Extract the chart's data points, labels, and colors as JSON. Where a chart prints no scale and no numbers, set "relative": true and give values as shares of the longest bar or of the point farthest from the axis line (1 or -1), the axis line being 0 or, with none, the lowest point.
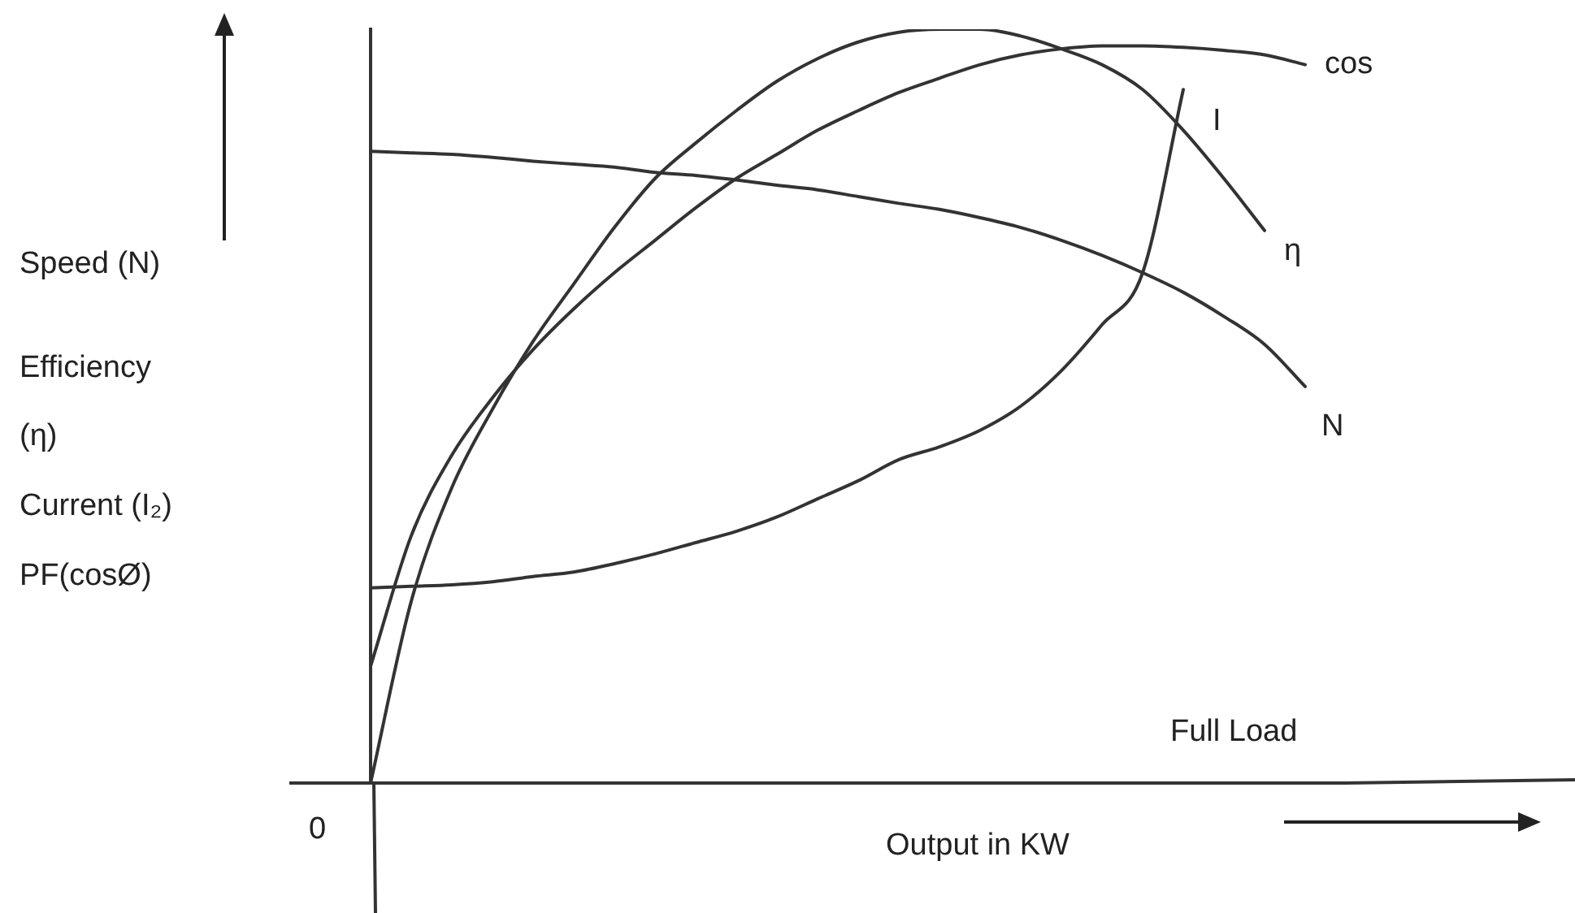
{
  "chart_data": {
    "type": "line",
    "relative": true,
    "xlabel": "Output in KW",
    "annotations": [
      "Speed (N)",
      "Efficiency",
      "(η)",
      "Current (I₂)",
      "PF(cosØ)",
      "0",
      "Full Load"
    ],
    "legend": false,
    "marker": "none",
    "line_style": "solid",
    "tick_labels": false,
    "categories": [
      null,
      null,
      null,
      null,
      null,
      null,
      null,
      null,
      null,
      null,
      null,
      null,
      null,
      null,
      null,
      null,
      null,
      null,
      null,
      null,
      null,
      null,
      null,
      null,
      null
    ],
    "series": [
      {
        "name": "cos",
        "color": "#333333",
        "values": [
          0.155,
          0.328,
          0.435,
          0.511,
          0.575,
          0.629,
          0.677,
          0.72,
          0.763,
          0.802,
          0.834,
          0.866,
          0.892,
          0.916,
          0.935,
          0.953,
          0.966,
          0.974,
          0.978,
          0.978,
          0.976,
          0.972,
          0.966,
          0.953,
          null
        ]
      },
      {
        "name": "I",
        "color": "#333333",
        "values": [
          0.259,
          0.261,
          0.263,
          0.267,
          0.274,
          0.28,
          0.291,
          0.304,
          0.319,
          0.334,
          0.353,
          0.377,
          0.401,
          0.429,
          0.446,
          0.468,
          0.5,
          0.547,
          0.608,
          0.677,
          0.92,
          null,
          null,
          null,
          null
        ]
      },
      {
        "name": "η",
        "color": "#333333",
        "values": [
          0,
          0.241,
          0.392,
          0.496,
          0.586,
          0.662,
          0.737,
          0.802,
          0.849,
          0.892,
          0.931,
          0.961,
          0.983,
          0.996,
          1,
          1,
          0.991,
          0.974,
          0.953,
          0.92,
          0.866,
          0.802,
          0.733,
          null,
          null
        ]
      },
      {
        "name": "N",
        "color": "#333333",
        "values": [
          0.838,
          0.836,
          0.834,
          0.83,
          0.825,
          0.821,
          0.817,
          0.81,
          0.806,
          0.8,
          0.793,
          0.787,
          0.778,
          0.769,
          0.761,
          0.75,
          0.737,
          0.72,
          0.7,
          0.677,
          0.651,
          0.619,
          0.582,
          0.526,
          null
        ]
      }
    ]
  }
}
